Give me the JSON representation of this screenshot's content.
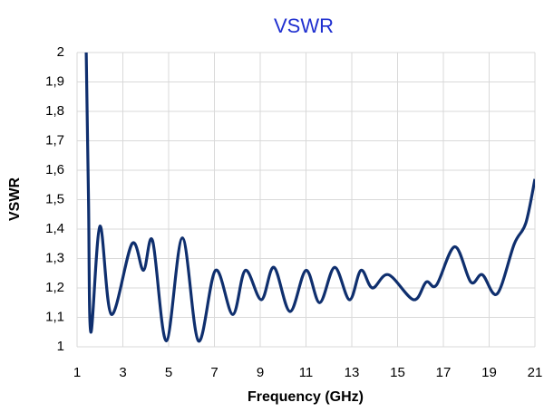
{
  "chart_data": {
    "type": "line",
    "title": "VSWR",
    "xlabel": "Frequency  (GHz)",
    "ylabel": "VSWR",
    "series": [
      {
        "name": "VSWR",
        "color": "#0f2f6e",
        "x": [
          1.4,
          1.5,
          1.6,
          2.0,
          2.5,
          3.4,
          3.9,
          4.3,
          4.9,
          5.6,
          6.3,
          7.05,
          7.8,
          8.35,
          9.05,
          9.6,
          10.3,
          11.0,
          11.6,
          12.25,
          12.9,
          13.4,
          13.9,
          14.6,
          15.7,
          16.25,
          16.7,
          17.5,
          18.2,
          18.7,
          19.35,
          20.1,
          20.6,
          21.0
        ],
        "values": [
          2.0,
          1.5,
          1.05,
          1.41,
          1.11,
          1.35,
          1.26,
          1.36,
          1.02,
          1.37,
          1.02,
          1.26,
          1.11,
          1.26,
          1.16,
          1.27,
          1.12,
          1.26,
          1.15,
          1.27,
          1.16,
          1.26,
          1.2,
          1.245,
          1.16,
          1.22,
          1.21,
          1.34,
          1.22,
          1.245,
          1.18,
          1.35,
          1.42,
          1.57
        ]
      }
    ],
    "xlim": [
      1,
      21
    ],
    "xticks": [
      1,
      3,
      5,
      7,
      9,
      11,
      13,
      15,
      17,
      19,
      21
    ],
    "ylim": [
      1,
      2
    ],
    "yticks": [
      1,
      {
        "value": 1.1,
        "label": "1,1"
      },
      {
        "value": 1.2,
        "label": "1,2"
      },
      {
        "value": 1.3,
        "label": "1,3"
      },
      {
        "value": 1.4,
        "label": "1,4"
      },
      {
        "value": 1.5,
        "label": "1,5"
      },
      {
        "value": 1.6,
        "label": "1,6"
      },
      {
        "value": 1.7,
        "label": "1,7"
      },
      {
        "value": 1.8,
        "label": "1,8"
      },
      {
        "value": 1.9,
        "label": "1,9"
      },
      2
    ],
    "grid": true
  }
}
